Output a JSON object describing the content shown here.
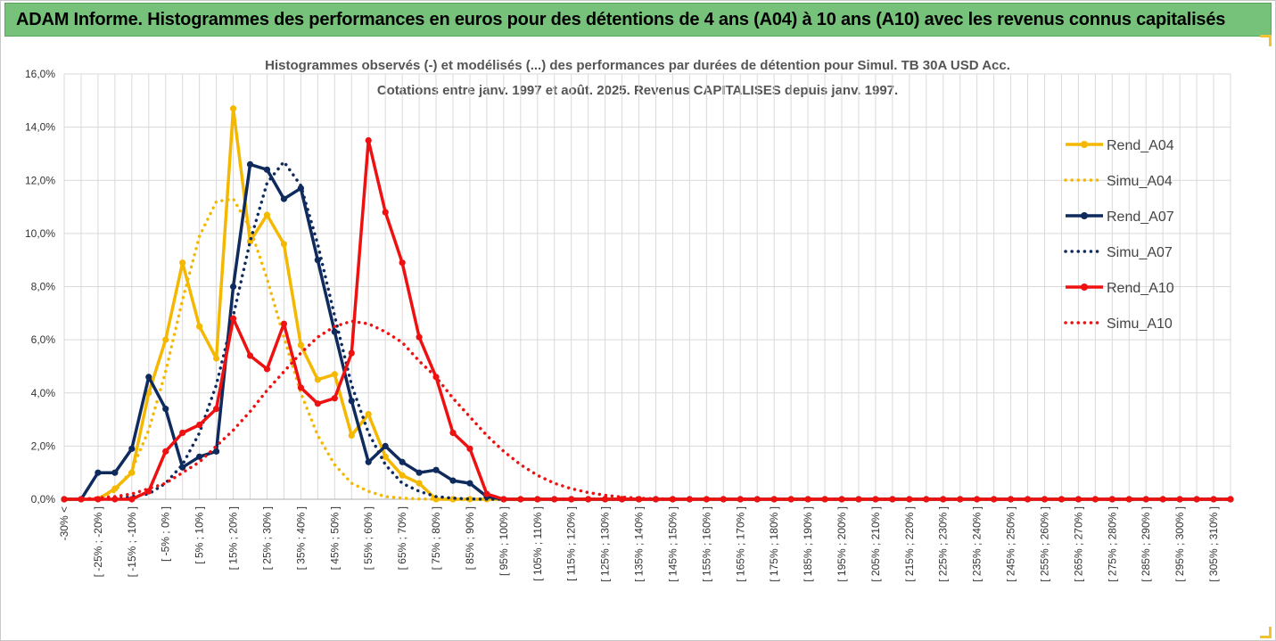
{
  "banner": {
    "title": "ADAM Informe. Histogrammes des performances en euros pour des détentions de 4 ans (A04) à 10 ans (A10) avec les revenus connus capitalisés"
  },
  "colors": {
    "banner_bg": "#77c27a",
    "A04": "#f5b800",
    "A07": "#0f2a5c",
    "A10": "#ee1111",
    "grid": "#d9d9d9",
    "corner_accent": "#f2c230"
  },
  "chart_data": {
    "type": "line",
    "title": "Histogrammes observés (-) et modélisés (...) des performances par durées de détention pour Simul. TB 30A USD Acc.",
    "subtitle": "Cotations entre janv. 1997 et août. 2025. Revenus CAPITALISES depuis janv. 1997.",
    "xlabel": "",
    "ylabel": "",
    "ylim": [
      0,
      16
    ],
    "y_ticks": [
      "0,0%",
      "2,0%",
      "4,0%",
      "6,0%",
      "8,0%",
      "10,0%",
      "12,0%",
      "14,0%",
      "16,0%"
    ],
    "y_tick_values": [
      0,
      2,
      4,
      6,
      8,
      10,
      12,
      14,
      16
    ],
    "grid": true,
    "legend_position": "top-right",
    "categories": [
      "-30% <",
      "[ -30% ; -25% ]",
      "[ -25% ; -20% ]",
      "[ -20% ; -15% ]",
      "[ -15% ; -10% ]",
      "[ -10% ; -5% ]",
      "[ -5% ; 0% ]",
      "[ 0% ; 5% ]",
      "[ 5% ; 10% ]",
      "[ 10% ; 15% ]",
      "[ 15% ; 20% ]",
      "[ 20% ; 25% ]",
      "[ 25% ; 30% ]",
      "[ 30% ; 35% ]",
      "[ 35% ; 40% ]",
      "[ 40% ; 45% ]",
      "[ 45% ; 50% ]",
      "[ 50% ; 55% ]",
      "[ 55% ; 60% ]",
      "[ 60% ; 65% ]",
      "[ 65% ; 70% ]",
      "[ 70% ; 75% ]",
      "[ 75% ; 80% ]",
      "[ 80% ; 85% ]",
      "[ 85% ; 90% ]",
      "[ 90% ; 95% ]",
      "[ 95% ; 100% ]",
      "[ 100% ; 105% ]",
      "[ 105% ; 110% ]",
      "[ 110% ; 115% ]",
      "[ 115% ; 120% ]",
      "[ 120% ; 125% ]",
      "[ 125% ; 130% ]",
      "[ 130% ; 135% ]",
      "[ 135% ; 140% ]",
      "[ 140% ; 145% ]",
      "[ 145% ; 150% ]",
      "[ 150% ; 155% ]",
      "[ 155% ; 160% ]",
      "[ 160% ; 165% ]",
      "[ 165% ; 170% ]",
      "[ 170% ; 175% ]",
      "[ 175% ; 180% ]",
      "[ 180% ; 185% ]",
      "[ 185% ; 190% ]",
      "[ 190% ; 195% ]",
      "[ 195% ; 200% ]",
      "[ 200% ; 205% ]",
      "[ 205% ; 210% ]",
      "[ 210% ; 215% ]",
      "[ 215% ; 220% ]",
      "[ 220% ; 225% ]",
      "[ 225% ; 230% ]",
      "[ 230% ; 235% ]",
      "[ 235% ; 240% ]",
      "[ 240% ; 245% ]",
      "[ 245% ; 250% ]",
      "[ 250% ; 255% ]",
      "[ 255% ; 260% ]",
      "[ 260% ; 265% ]",
      "[ 265% ; 270% ]",
      "[ 270% ; 275% ]",
      "[ 275% ; 280% ]",
      "[ 280% ; 285% ]",
      "[ 285% ; 290% ]",
      "[ 290% ; 295% ]",
      "[ 295% ; 300% ]",
      "[ 300% ; 305% ]",
      "[ 305% ; 310% ]",
      "[ 310% ; 315% ]"
    ],
    "series": [
      {
        "name": "Rend_A04",
        "style": "solid",
        "marker": true,
        "color": "#f5b800",
        "values": [
          0,
          0,
          0,
          0.4,
          1.0,
          4.0,
          6.0,
          8.9,
          6.5,
          5.3,
          14.7,
          9.7,
          10.7,
          9.6,
          5.8,
          4.5,
          4.7,
          2.4,
          3.2,
          1.6,
          0.9,
          0.6,
          0,
          0,
          0,
          0,
          0,
          0,
          0,
          0,
          0,
          0,
          0,
          0,
          0,
          0,
          0,
          0,
          0,
          0,
          0,
          0,
          0,
          0,
          0,
          0,
          0,
          0,
          0,
          0,
          0,
          0,
          0,
          0,
          0,
          0,
          0,
          0,
          0,
          0,
          0,
          0,
          0,
          0,
          0,
          0,
          0,
          0,
          0,
          0
        ]
      },
      {
        "name": "Simu_A04",
        "style": "dotted",
        "marker": false,
        "color": "#f5b800",
        "values": [
          0,
          0,
          0.05,
          0.3,
          1.1,
          2.6,
          4.8,
          7.5,
          9.9,
          11.2,
          11.3,
          10.2,
          8.3,
          6.1,
          4.0,
          2.4,
          1.3,
          0.6,
          0.3,
          0.1,
          0.04,
          0.01,
          0,
          0,
          0,
          0,
          0,
          0,
          0,
          0,
          0,
          0,
          0,
          0,
          0,
          0,
          0,
          0,
          0,
          0,
          0,
          0,
          0,
          0,
          0,
          0,
          0,
          0,
          0,
          0,
          0,
          0,
          0,
          0,
          0,
          0,
          0,
          0,
          0,
          0,
          0,
          0,
          0,
          0,
          0,
          0,
          0,
          0,
          0,
          0
        ]
      },
      {
        "name": "Rend_A07",
        "style": "solid",
        "marker": true,
        "color": "#0f2a5c",
        "values": [
          0,
          0,
          1.0,
          1.0,
          1.9,
          4.6,
          3.4,
          1.2,
          1.6,
          1.8,
          8.0,
          12.6,
          12.4,
          11.3,
          11.7,
          9.0,
          6.3,
          3.7,
          1.4,
          2.0,
          1.4,
          1.0,
          1.1,
          0.7,
          0.6,
          0.1,
          0,
          0,
          0,
          0,
          0,
          0,
          0,
          0,
          0,
          0,
          0,
          0,
          0,
          0,
          0,
          0,
          0,
          0,
          0,
          0,
          0,
          0,
          0,
          0,
          0,
          0,
          0,
          0,
          0,
          0,
          0,
          0,
          0,
          0,
          0,
          0,
          0,
          0,
          0,
          0,
          0,
          0,
          0,
          0
        ]
      },
      {
        "name": "Simu_A07",
        "style": "dotted",
        "marker": false,
        "color": "#0f2a5c",
        "values": [
          0,
          0,
          0,
          0,
          0.1,
          0.2,
          0.6,
          1.3,
          2.5,
          4.3,
          6.9,
          9.7,
          11.9,
          12.7,
          11.8,
          9.6,
          6.9,
          4.3,
          2.5,
          1.3,
          0.6,
          0.3,
          0.1,
          0.04,
          0.01,
          0,
          0,
          0,
          0,
          0,
          0,
          0,
          0,
          0,
          0,
          0,
          0,
          0,
          0,
          0,
          0,
          0,
          0,
          0,
          0,
          0,
          0,
          0,
          0,
          0,
          0,
          0,
          0,
          0,
          0,
          0,
          0,
          0,
          0,
          0,
          0,
          0,
          0,
          0,
          0,
          0,
          0,
          0,
          0,
          0
        ]
      },
      {
        "name": "Rend_A10",
        "style": "solid",
        "marker": true,
        "color": "#ee1111",
        "values": [
          0,
          0,
          0,
          0,
          0,
          0.3,
          1.8,
          2.5,
          2.8,
          3.4,
          6.8,
          5.4,
          4.9,
          6.6,
          4.2,
          3.6,
          3.8,
          5.5,
          13.5,
          10.8,
          8.9,
          6.1,
          4.6,
          2.5,
          1.9,
          0.2,
          0,
          0,
          0,
          0,
          0,
          0,
          0,
          0,
          0,
          0,
          0,
          0,
          0,
          0,
          0,
          0,
          0,
          0,
          0,
          0,
          0,
          0,
          0,
          0,
          0,
          0,
          0,
          0,
          0,
          0,
          0,
          0,
          0,
          0,
          0,
          0,
          0,
          0,
          0,
          0,
          0,
          0,
          0,
          0
        ]
      },
      {
        "name": "Simu_A10",
        "style": "dotted",
        "marker": false,
        "color": "#ee1111",
        "values": [
          0,
          0,
          0.05,
          0.1,
          0.2,
          0.4,
          0.6,
          1.0,
          1.4,
          2.0,
          2.6,
          3.3,
          4.1,
          4.8,
          5.5,
          6.1,
          6.5,
          6.7,
          6.6,
          6.3,
          5.9,
          5.2,
          4.6,
          3.8,
          3.1,
          2.4,
          1.8,
          1.3,
          0.9,
          0.6,
          0.4,
          0.25,
          0.15,
          0.08,
          0.04,
          0.02,
          0.01,
          0,
          0,
          0,
          0,
          0,
          0,
          0,
          0,
          0,
          0,
          0,
          0,
          0,
          0,
          0,
          0,
          0,
          0,
          0,
          0,
          0,
          0,
          0,
          0,
          0,
          0,
          0,
          0,
          0,
          0,
          0,
          0,
          0
        ]
      }
    ]
  }
}
